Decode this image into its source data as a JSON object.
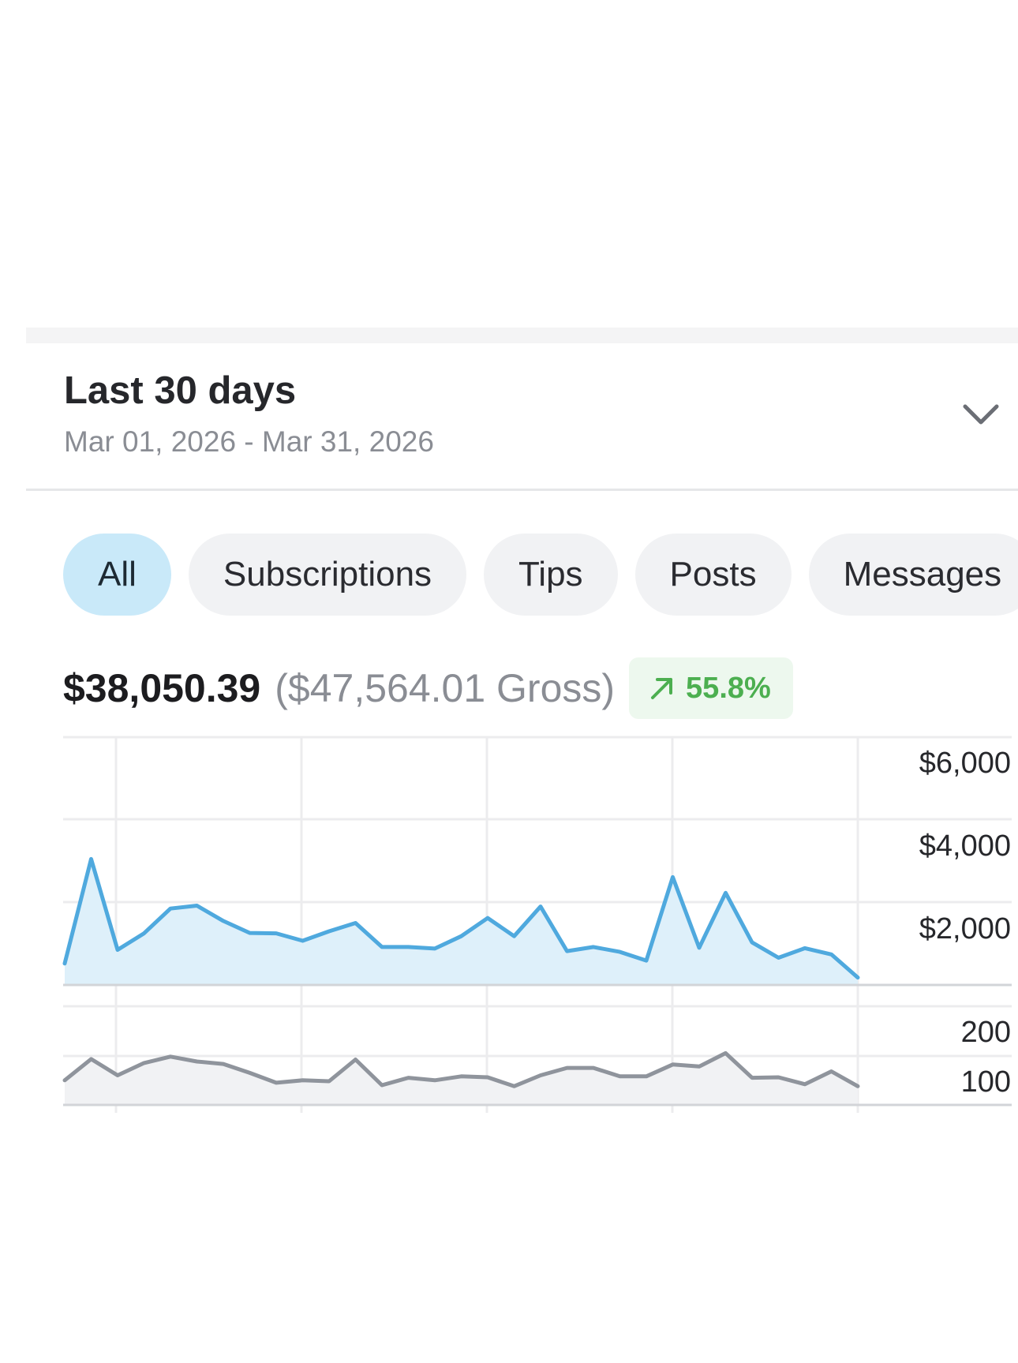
{
  "period": {
    "title": "Last 30 days",
    "range": "Mar 01, 2026 - Mar 31, 2026",
    "dropdown_icon": "chevron-down-icon"
  },
  "tabs": [
    {
      "label": "All",
      "active": true
    },
    {
      "label": "Subscriptions",
      "active": false
    },
    {
      "label": "Tips",
      "active": false
    },
    {
      "label": "Posts",
      "active": false
    },
    {
      "label": "Messages",
      "active": false
    }
  ],
  "totals": {
    "net": "$38,050.39",
    "gross": "($47,564.01 Gross)",
    "change": "55.8%",
    "change_icon": "arrow-up-right-icon"
  },
  "colors": {
    "accent": "#4fa9de",
    "accent_fill": "#def0fa",
    "secondary_line": "#8f949c",
    "secondary_fill": "#f1f2f4",
    "positive": "#4caf50",
    "positive_bg": "#edf8ee",
    "active_tab": "#c9e9f9"
  },
  "chart_data": [
    {
      "type": "area",
      "y_tick_labels": [
        "$6,000",
        "$4,000",
        "$2,000"
      ],
      "ylim": [
        0,
        6000
      ],
      "grid": true,
      "series": [
        {
          "values": [
            520,
            3050,
            850,
            1250,
            1850,
            1920,
            1550,
            1260,
            1250,
            1070,
            1300,
            1500,
            920,
            920,
            880,
            1180,
            1620,
            1180,
            1900,
            820,
            920,
            800,
            590,
            2610,
            900,
            2230,
            1030,
            660,
            890,
            740,
            180
          ]
        }
      ]
    },
    {
      "type": "area",
      "y_tick_labels": [
        "200",
        "100"
      ],
      "ylim": [
        0,
        200
      ],
      "grid": true,
      "series": [
        {
          "values": [
            50,
            93,
            60,
            85,
            98,
            88,
            83,
            65,
            45,
            50,
            48,
            92,
            40,
            55,
            50,
            58,
            56,
            38,
            60,
            75,
            75,
            58,
            58,
            82,
            78,
            105,
            55,
            56,
            42,
            68,
            38
          ]
        }
      ]
    }
  ]
}
